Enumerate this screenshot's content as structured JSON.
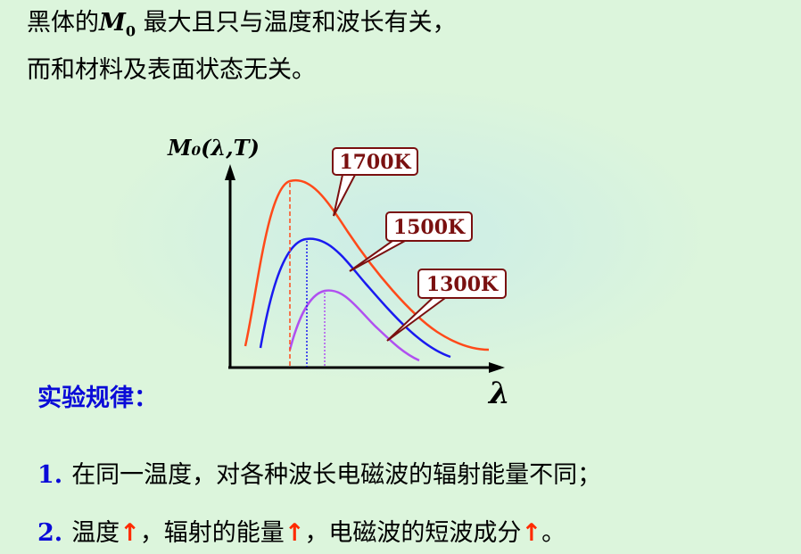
{
  "intro": {
    "line1_prefix": "黑体的",
    "symbol": "M",
    "symbol_sub": "0",
    "line1_suffix": " 最大且只与温度和波长有关，",
    "line2": "而和材料及表面状态无关。"
  },
  "diagram": {
    "y_axis_label": "M₀(λ,T)",
    "x_axis_label": "λ",
    "curves": [
      {
        "label": "1700K",
        "color": "#ff4a1a"
      },
      {
        "label": "1500K",
        "color": "#1a1af0"
      },
      {
        "label": "1300K",
        "color": "#b050f0"
      }
    ],
    "label_box_border": "#7a1010",
    "label_text_color": "#7a1010"
  },
  "rules": {
    "title": "实验规律：",
    "items": [
      {
        "num": "1.",
        "segments": [
          "在同一温度，对各种波长电磁波的辐射能量不同；"
        ]
      },
      {
        "num": "2.",
        "segments": [
          "温度",
          "↑",
          "，辐射的能量",
          "↑",
          "，电磁波的短波成分",
          "↑",
          "。"
        ]
      }
    ]
  }
}
